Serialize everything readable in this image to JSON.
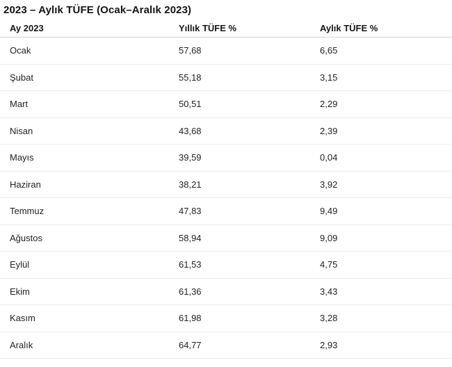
{
  "page": {
    "title": "2023 – Aylık TÜFE (Ocak–Aralık 2023)"
  },
  "table": {
    "columns": [
      "Ay 2023",
      "Yıllık TÜFE %",
      "Aylık TÜFE %"
    ],
    "rows": [
      [
        "Ocak",
        "57,68",
        "6,65"
      ],
      [
        "Şubat",
        "55,18",
        "3,15"
      ],
      [
        "Mart",
        "50,51",
        "2,29"
      ],
      [
        "Nisan",
        "43,68",
        "2,39"
      ],
      [
        "Mayıs",
        "39,59",
        "0,04"
      ],
      [
        "Haziran",
        "38,21",
        "3,92"
      ],
      [
        "Temmuz",
        "47,83",
        "9,49"
      ],
      [
        "Ağustos",
        "58,94",
        "9,09"
      ],
      [
        "Eylül",
        "61,53",
        "4,75"
      ],
      [
        "Ekim",
        "61,36",
        "3,43"
      ],
      [
        "Kasım",
        "61,98",
        "3,28"
      ],
      [
        "Aralık",
        "64,77",
        "2,93"
      ]
    ]
  },
  "colors": {
    "background": "#ffffff",
    "title_text": "#141414",
    "body_text": "#222222",
    "header_divider": "#d4d4d4",
    "row_divider": "#ececec"
  },
  "chart_data": {
    "type": "table",
    "title": "2023 – Aylık TÜFE (Ocak–Aralık 2023)",
    "columns": [
      "Ay 2023",
      "Yıllık TÜFE %",
      "Aylık TÜFE %"
    ],
    "months": [
      "Ocak",
      "Şubat",
      "Mart",
      "Nisan",
      "Mayıs",
      "Haziran",
      "Temmuz",
      "Ağustos",
      "Eylül",
      "Ekim",
      "Kasım",
      "Aralık"
    ],
    "yillik_tufe_pct": [
      57.68,
      55.18,
      50.51,
      43.68,
      39.59,
      38.21,
      47.83,
      58.94,
      61.53,
      61.36,
      61.98,
      64.77
    ],
    "aylik_tufe_pct": [
      6.65,
      3.15,
      2.29,
      2.39,
      0.04,
      3.92,
      9.49,
      9.09,
      4.75,
      3.43,
      3.28,
      2.93
    ]
  }
}
